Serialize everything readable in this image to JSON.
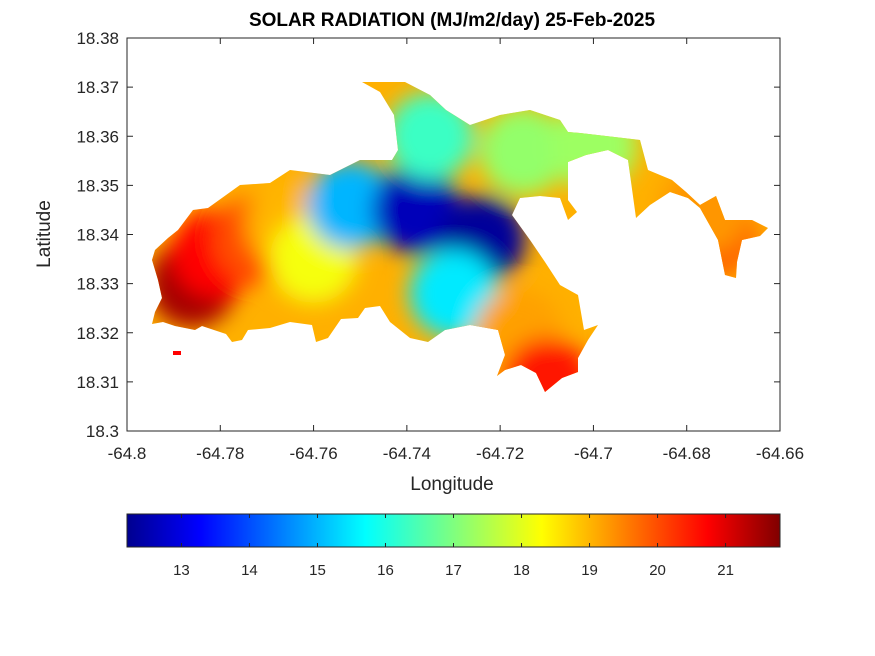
{
  "chart_data": {
    "type": "heatmap",
    "subtype": "filled-contour-map",
    "title": "SOLAR RADIATION (MJ/m2/day) 25-Feb-2025",
    "xlabel": "Longitude",
    "ylabel": "Latitude",
    "xlim": [
      -64.8,
      -64.66
    ],
    "ylim": [
      18.3,
      18.38
    ],
    "xticks": [
      -64.8,
      -64.78,
      -64.76,
      -64.74,
      -64.72,
      -64.7,
      -64.68,
      -64.66
    ],
    "xtick_labels": [
      "-64.8",
      "-64.78",
      "-64.76",
      "-64.74",
      "-64.72",
      "-64.7",
      "-64.68",
      "-64.66"
    ],
    "yticks": [
      18.3,
      18.31,
      18.32,
      18.33,
      18.34,
      18.35,
      18.36,
      18.37,
      18.38
    ],
    "ytick_labels": [
      "18.3",
      "18.31",
      "18.32",
      "18.33",
      "18.34",
      "18.35",
      "18.36",
      "18.37",
      "18.38"
    ],
    "grid": false,
    "colormap": "jet",
    "colorbar": {
      "orientation": "horizontal",
      "location": "below",
      "range": [
        12.2,
        21.8
      ],
      "ticks": [
        13,
        14,
        15,
        16,
        17,
        18,
        19,
        20,
        21
      ],
      "tick_labels": [
        "13",
        "14",
        "15",
        "16",
        "17",
        "18",
        "19",
        "20",
        "21"
      ]
    },
    "regions": [
      {
        "lon": -64.786,
        "lat": 18.33,
        "value": 21.5
      },
      {
        "lon": -64.781,
        "lat": 18.336,
        "value": 20.7
      },
      {
        "lon": -64.772,
        "lat": 18.339,
        "value": 20.0
      },
      {
        "lon": -64.765,
        "lat": 18.342,
        "value": 19.0
      },
      {
        "lon": -64.76,
        "lat": 18.335,
        "value": 18.2
      },
      {
        "lon": -64.752,
        "lat": 18.346,
        "value": 15.0
      },
      {
        "lon": -64.738,
        "lat": 18.345,
        "value": 12.6
      },
      {
        "lon": -64.724,
        "lat": 18.339,
        "value": 12.3
      },
      {
        "lon": -64.73,
        "lat": 18.328,
        "value": 15.5
      },
      {
        "lon": -64.735,
        "lat": 18.36,
        "value": 16.3
      },
      {
        "lon": -64.715,
        "lat": 18.357,
        "value": 17.2
      },
      {
        "lon": -64.7,
        "lat": 18.358,
        "value": 17.3
      },
      {
        "lon": -64.716,
        "lat": 18.32,
        "value": 19.2
      },
      {
        "lon": -64.71,
        "lat": 18.31,
        "value": 20.5
      },
      {
        "lon": -64.674,
        "lat": 18.34,
        "value": 19.8
      },
      {
        "lon": -64.676,
        "lat": 18.345,
        "value": 19.3
      }
    ]
  }
}
